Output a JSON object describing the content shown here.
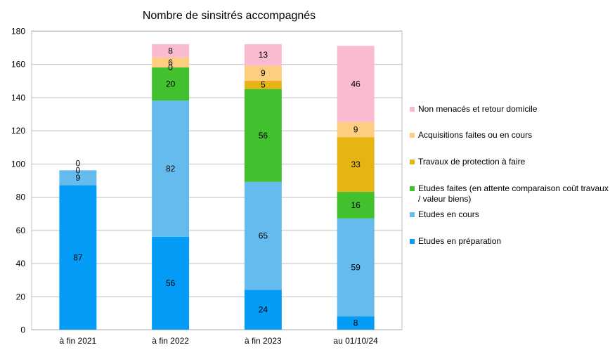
{
  "chart_data": {
    "type": "bar",
    "stacked": true,
    "title": "Nombre de sinsitrés accompagnés",
    "xlabel": "",
    "ylabel": "",
    "ylim": [
      0,
      180
    ],
    "yticks": [
      0,
      20,
      40,
      60,
      80,
      100,
      120,
      140,
      160,
      180
    ],
    "grid": true,
    "legend_position": "right",
    "categories": [
      "à fin 2021",
      "à fin 2022",
      "à fin 2023",
      "au 01/10/24"
    ],
    "series": [
      {
        "name": "Etudes en préparation",
        "color": "#049cf6",
        "values": [
          87,
          56,
          24,
          8
        ]
      },
      {
        "name": "Etudes en cours",
        "color": "#66bbee",
        "values": [
          9,
          82,
          65,
          59
        ]
      },
      {
        "name": "Etudes faites (en attente comparaison coût travaux / valeur biens)",
        "color": "#42c02e",
        "values": [
          0,
          20,
          56,
          16
        ]
      },
      {
        "name": "Travaux de protection à faire",
        "color": "#e6b514",
        "values": [
          0,
          0,
          5,
          33
        ]
      },
      {
        "name": "Acquisitions faites ou  en cours",
        "color": "#fece80",
        "values": [
          0,
          6,
          9,
          9
        ]
      },
      {
        "name": "Non menacés et retour domicile",
        "color": "#f8bbd0",
        "values": [
          0,
          8,
          13,
          46
        ]
      }
    ],
    "data_labels": [
      [
        "87",
        "9",
        "0",
        "0",
        "",
        ""
      ],
      [
        "56",
        "82",
        "20",
        "0",
        "6",
        "8"
      ],
      [
        "24",
        "65",
        "56",
        "5",
        "9",
        "13"
      ],
      [
        "8",
        "59",
        "16",
        "33",
        "9",
        "46"
      ]
    ]
  }
}
